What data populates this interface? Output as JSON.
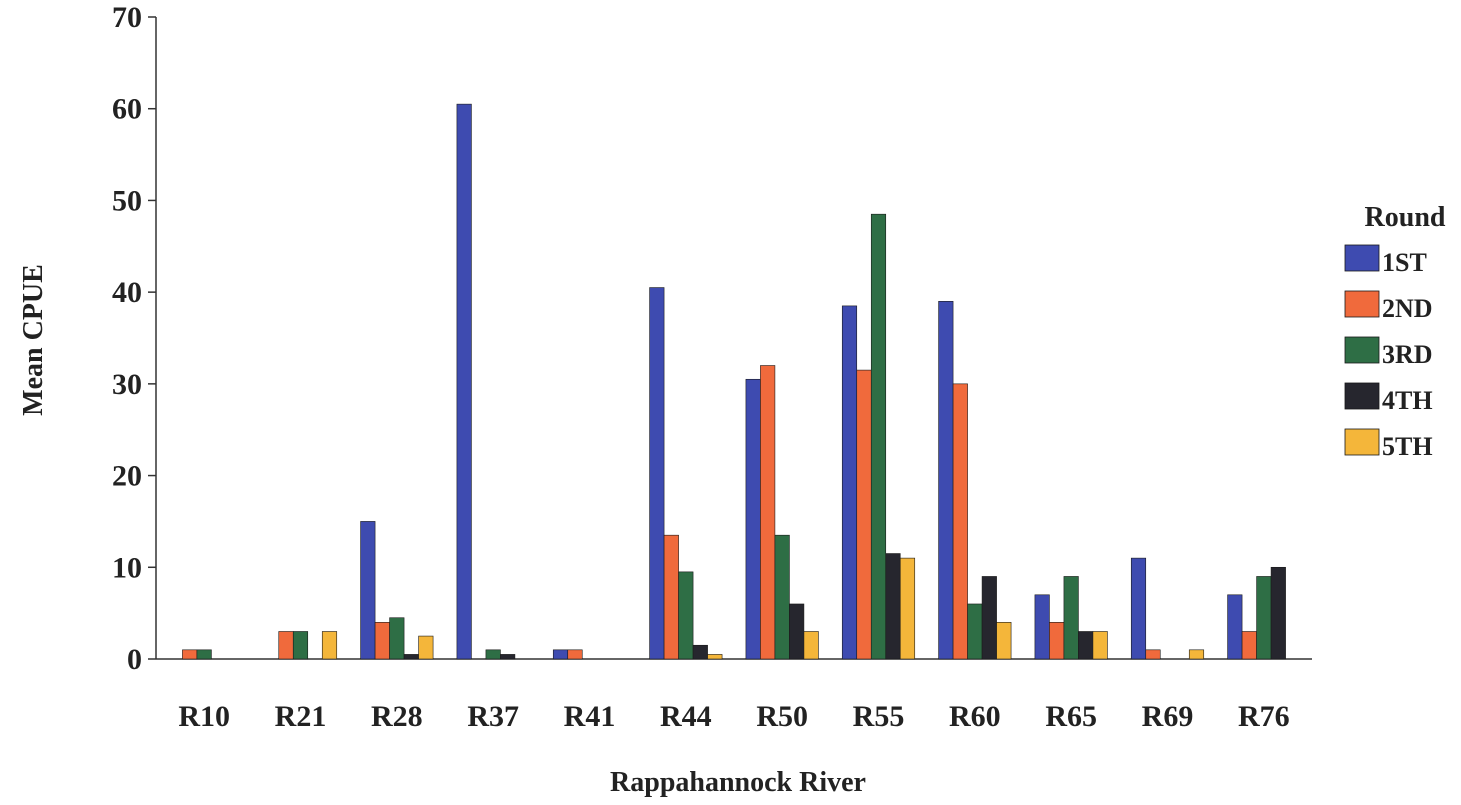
{
  "chart_data": {
    "type": "bar",
    "title": "",
    "xlabel": "Rappahannock River",
    "ylabel": "Mean CPUE",
    "ylim": [
      0,
      70
    ],
    "yticks": [
      0,
      10,
      20,
      30,
      40,
      50,
      60,
      70
    ],
    "grid": false,
    "legend": {
      "title": "Round",
      "placement": "right"
    },
    "categories": [
      "R10",
      "R21",
      "R28",
      "R37",
      "R41",
      "R44",
      "R50",
      "R55",
      "R60",
      "R65",
      "R69",
      "R76"
    ],
    "series": [
      {
        "name": "1ST",
        "color": "#3e4bb0",
        "values": [
          0,
          0,
          15,
          60.5,
          1,
          40.5,
          30.5,
          38.5,
          39,
          7,
          11,
          7
        ]
      },
      {
        "name": "2ND",
        "color": "#f06a3c",
        "values": [
          1,
          3,
          4,
          0,
          1,
          13.5,
          32,
          31.5,
          30,
          4,
          1,
          3
        ]
      },
      {
        "name": "3RD",
        "color": "#2e6e45",
        "values": [
          1,
          3,
          4.5,
          1,
          0,
          9.5,
          13.5,
          48.5,
          6,
          9,
          0,
          9
        ]
      },
      {
        "name": "4TH",
        "color": "#26262e",
        "values": [
          0,
          0,
          0.5,
          0.5,
          0,
          1.5,
          6,
          11.5,
          9,
          3,
          0,
          10
        ]
      },
      {
        "name": "5TH",
        "color": "#f4b63a",
        "values": [
          0,
          3,
          2.5,
          0,
          0,
          0.5,
          3,
          11,
          4,
          3,
          1,
          0
        ]
      }
    ]
  }
}
